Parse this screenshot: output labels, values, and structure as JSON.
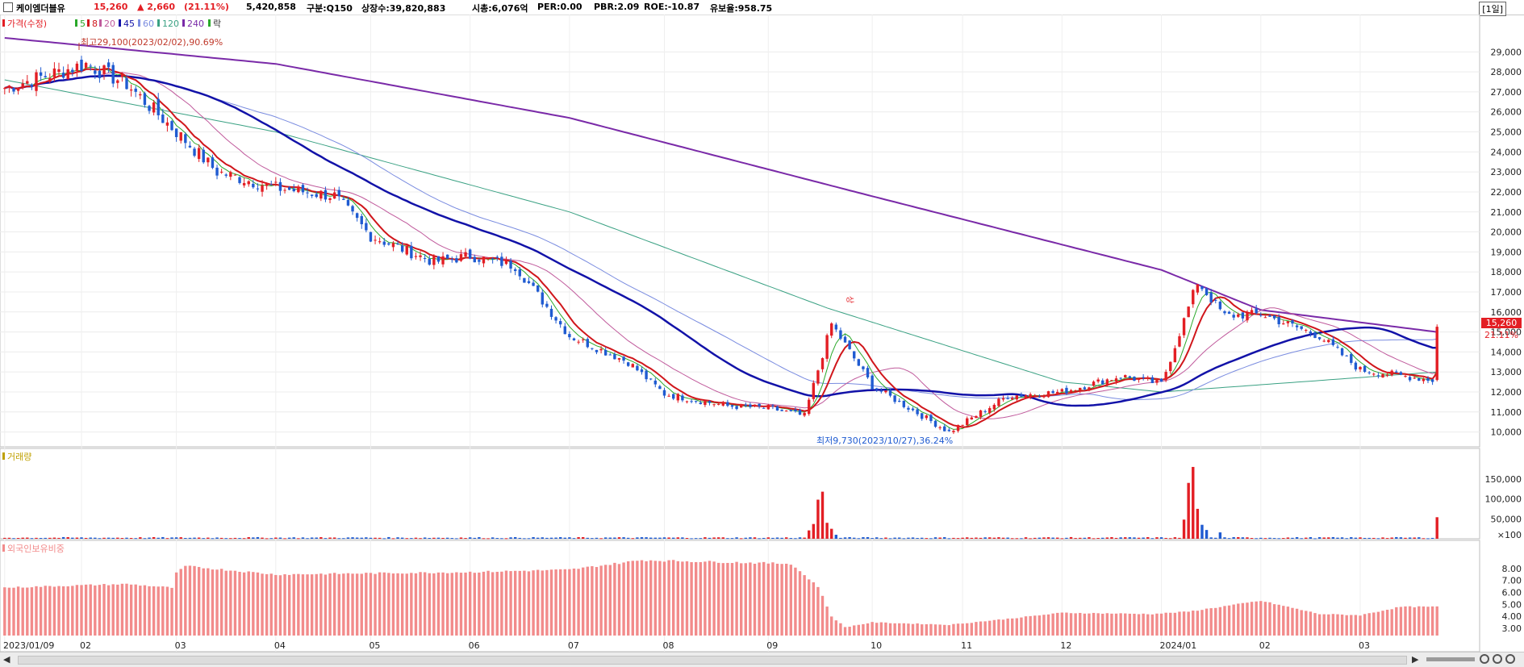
{
  "header": {
    "name": "케이엠더블유",
    "price": "15,260",
    "change": "▲ 2,660",
    "change_pct": "(21.11%)",
    "volume": "5,420,858",
    "market": "구분:Q150",
    "shares": "상장수:39,820,883",
    "mcap": "시총:6,076억",
    "per": "PER:0.00",
    "pbr": "PBR:2.09",
    "roe": "ROE:-10.87",
    "reserve": "유보율:958.75",
    "period": "[1일]"
  },
  "colors": {
    "up": "#e31e24",
    "down": "#1f5bd1",
    "ma5": "#2aa82a",
    "ma8": "#d0161b",
    "ma20": "#c05a9c",
    "ma45": "#1212a8",
    "ma60": "#7a8ce0",
    "ma120": "#3aa183",
    "ma240": "#7a2aa8",
    "foreign": "#f28b8b"
  },
  "legend": {
    "price": "가격(수정)",
    "ma5": "5",
    "ma8": "8",
    "ma20": "20",
    "ma45": "45",
    "ma60": "60",
    "ma120": "120",
    "ma240": "240",
    "fall": "락"
  },
  "annotations": {
    "high": "최고29,100(2023/02/02),90.69%",
    "low": "최저9,730(2023/10/27),36.24%",
    "up_tag": "상",
    "last_price": "15,260",
    "last_pct": "21.11%"
  },
  "panels": {
    "volume_title": "거래량",
    "foreign_title": "외국인보유비중"
  },
  "chart_data": [
    {
      "type": "candlestick",
      "title": "가격(수정)",
      "ylim": [
        9500,
        29900
      ],
      "y_ticks": [
        "29,000",
        "28,000",
        "27,000",
        "26,000",
        "25,000",
        "24,000",
        "23,000",
        "22,000",
        "21,000",
        "20,000",
        "19,000",
        "18,000",
        "17,000",
        "16,000",
        "15,000",
        "14,000",
        "13,000",
        "12,000",
        "11,000",
        "10,000"
      ],
      "y_tick_values": [
        29000,
        28000,
        27000,
        26000,
        25000,
        24000,
        23000,
        22000,
        21000,
        20000,
        19000,
        18000,
        17000,
        16000,
        15000,
        14000,
        13000,
        12000,
        11000,
        10000
      ],
      "x_labels": [
        "2023/01/09",
        "02",
        "03",
        "04",
        "05",
        "06",
        "07",
        "08",
        "09",
        "10",
        "11",
        "12",
        "2024/01",
        "02",
        "03"
      ],
      "x_label_dates": [
        "2023-01-09",
        "2023-02-01",
        "2023-03-02",
        "2023-04-03",
        "2023-05-02",
        "2023-06-01",
        "2023-07-03",
        "2023-08-01",
        "2023-09-01",
        "2023-10-04",
        "2023-11-01",
        "2023-12-01",
        "2024-01-02",
        "2024-02-01",
        "2024-03-04"
      ],
      "start_date": "2023-01-09",
      "end_date": "2024-03-27",
      "close_keypoints": [
        [
          "2023-01-09",
          27200
        ],
        [
          "2023-01-20",
          27800
        ],
        [
          "2023-02-02",
          28400
        ],
        [
          "2023-02-15",
          27400
        ],
        [
          "2023-03-02",
          25000
        ],
        [
          "2023-03-15",
          23000
        ],
        [
          "2023-04-03",
          22200
        ],
        [
          "2023-04-20",
          21800
        ],
        [
          "2023-05-02",
          19800
        ],
        [
          "2023-05-20",
          18500
        ],
        [
          "2023-06-01",
          18800
        ],
        [
          "2023-06-15",
          18300
        ],
        [
          "2023-07-03",
          14800
        ],
        [
          "2023-07-20",
          13500
        ],
        [
          "2023-08-01",
          11900
        ],
        [
          "2023-08-20",
          11300
        ],
        [
          "2023-09-01",
          11200
        ],
        [
          "2023-09-13",
          10800
        ],
        [
          "2023-09-21",
          15400
        ],
        [
          "2023-10-04",
          12300
        ],
        [
          "2023-10-27",
          10000
        ],
        [
          "2023-11-15",
          11800
        ],
        [
          "2023-12-01",
          12000
        ],
        [
          "2023-12-20",
          12800
        ],
        [
          "2024-01-02",
          12400
        ],
        [
          "2024-01-12",
          17500
        ],
        [
          "2024-01-22",
          15800
        ],
        [
          "2024-02-01",
          15900
        ],
        [
          "2024-02-20",
          14800
        ],
        [
          "2024-03-04",
          13100
        ],
        [
          "2024-03-26",
          12600
        ],
        [
          "2024-03-27",
          15260
        ]
      ],
      "high": 29100,
      "high_date": "2023-02-02",
      "low": 9730,
      "low_date": "2023-10-27",
      "last": 15260,
      "ma240_keypoints": [
        [
          "2023-01-09",
          29700
        ],
        [
          "2023-04-01",
          28400
        ],
        [
          "2023-07-01",
          25700
        ],
        [
          "2023-10-01",
          21900
        ],
        [
          "2024-01-02",
          18100
        ],
        [
          "2024-02-01",
          16100
        ],
        [
          "2024-03-27",
          15000
        ]
      ],
      "ma120_keypoints": [
        [
          "2023-01-09",
          27600
        ],
        [
          "2023-04-01",
          25000
        ],
        [
          "2023-07-01",
          21000
        ],
        [
          "2023-09-20",
          16200
        ],
        [
          "2023-12-01",
          12500
        ],
        [
          "2024-01-02",
          12000
        ],
        [
          "2024-03-27",
          13000
        ]
      ]
    },
    {
      "type": "bar",
      "title": "거래량",
      "y_ticks": [
        "150,000",
        "100,000",
        "50,000",
        "×100"
      ],
      "y_tick_values": [
        150000,
        100000,
        50000,
        10000
      ],
      "ylim": [
        0,
        190000
      ],
      "spikes": [
        [
          "2023-09-14",
          21000
        ],
        [
          "2023-09-15",
          37000
        ],
        [
          "2023-09-18",
          98000
        ],
        [
          "2023-09-19",
          118000
        ],
        [
          "2023-09-20",
          40000
        ],
        [
          "2023-09-21",
          25000
        ],
        [
          "2023-09-22",
          10000
        ],
        [
          "2024-01-09",
          48000
        ],
        [
          "2024-01-10",
          140000
        ],
        [
          "2024-01-11",
          180000
        ],
        [
          "2024-01-12",
          75000
        ],
        [
          "2024-01-15",
          35000
        ],
        [
          "2024-01-16",
          22000
        ],
        [
          "2024-01-19",
          16000
        ],
        [
          "2024-03-27",
          54000
        ]
      ],
      "baseline": 3000
    },
    {
      "type": "bar",
      "title": "외국인보유비중",
      "y_ticks": [
        "8.00",
        "7.00",
        "6.00",
        "5.00",
        "4.00",
        "3.00"
      ],
      "y_tick_values": [
        8,
        7,
        6,
        5,
        4,
        3
      ],
      "ylim": [
        2.4,
        9.0
      ],
      "keypoints": [
        [
          "2023-01-09",
          6.4
        ],
        [
          "2023-02-01",
          6.6
        ],
        [
          "2023-02-15",
          6.7
        ],
        [
          "2023-03-01",
          6.4
        ],
        [
          "2023-03-02",
          7.6
        ],
        [
          "2023-03-06",
          8.2
        ],
        [
          "2023-04-03",
          7.5
        ],
        [
          "2023-05-02",
          7.6
        ],
        [
          "2023-06-01",
          7.7
        ],
        [
          "2023-07-03",
          7.9
        ],
        [
          "2023-07-25",
          8.7
        ],
        [
          "2023-09-08",
          8.4
        ],
        [
          "2023-09-18",
          6.5
        ],
        [
          "2023-09-21",
          4.0
        ],
        [
          "2023-09-26",
          3.1
        ],
        [
          "2023-10-04",
          3.5
        ],
        [
          "2023-10-27",
          3.3
        ],
        [
          "2023-11-15",
          3.8
        ],
        [
          "2023-12-01",
          4.3
        ],
        [
          "2023-12-29",
          4.2
        ],
        [
          "2024-01-10",
          4.4
        ],
        [
          "2024-02-01",
          5.3
        ],
        [
          "2024-02-20",
          4.2
        ],
        [
          "2024-03-04",
          4.1
        ],
        [
          "2024-03-15",
          4.8
        ],
        [
          "2024-03-27",
          4.8
        ]
      ]
    }
  ]
}
